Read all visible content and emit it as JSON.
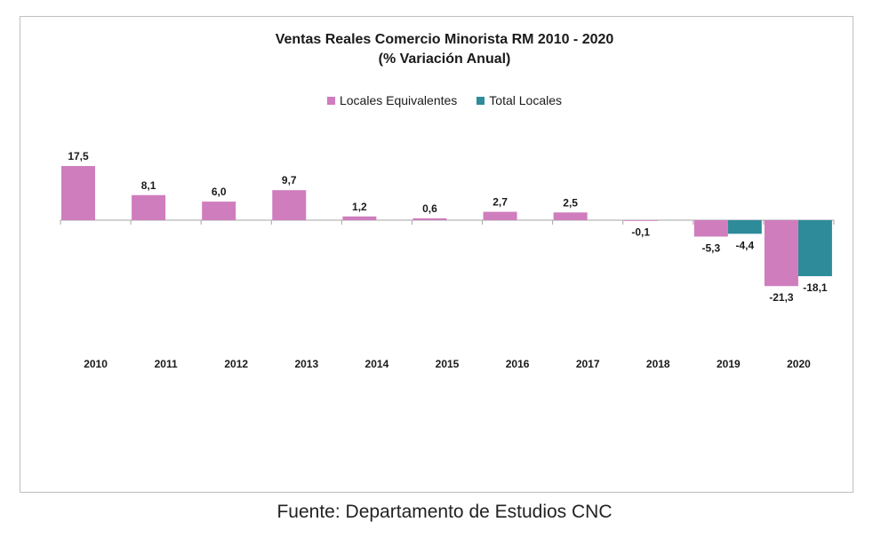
{
  "chart_data": {
    "type": "bar",
    "title": "Ventas Reales Comercio Minorista  RM 2010 - 2020",
    "subtitle": "(% Variación Anual)",
    "categories": [
      "2010",
      "2011",
      "2012",
      "2013",
      "2014",
      "2015",
      "2016",
      "2017",
      "2018",
      "2019",
      "2020"
    ],
    "series": [
      {
        "name": "Locales Equivalentes",
        "color": "#cf7dbd",
        "values": [
          17.5,
          8.1,
          6.0,
          9.7,
          1.2,
          0.6,
          2.7,
          2.5,
          -0.1,
          -5.3,
          -21.3
        ],
        "labels": [
          "17,5",
          "8,1",
          "6,0",
          "9,7",
          "1,2",
          "0,6",
          "2,7",
          "2,5",
          "-0,1",
          "-5,3",
          "-21,3"
        ]
      },
      {
        "name": "Total Locales",
        "color": "#2e8b9a",
        "values": [
          null,
          null,
          null,
          null,
          null,
          null,
          null,
          null,
          null,
          -4.4,
          -18.1
        ],
        "labels": [
          "",
          "",
          "",
          "",
          "",
          "",
          "",
          "",
          "",
          "-4,4",
          "-18,1"
        ]
      }
    ],
    "legend_position": "top-center",
    "grid": false,
    "ylim": [
      -27,
      25
    ]
  },
  "source": "Fuente: Departamento de Estudios CNC"
}
